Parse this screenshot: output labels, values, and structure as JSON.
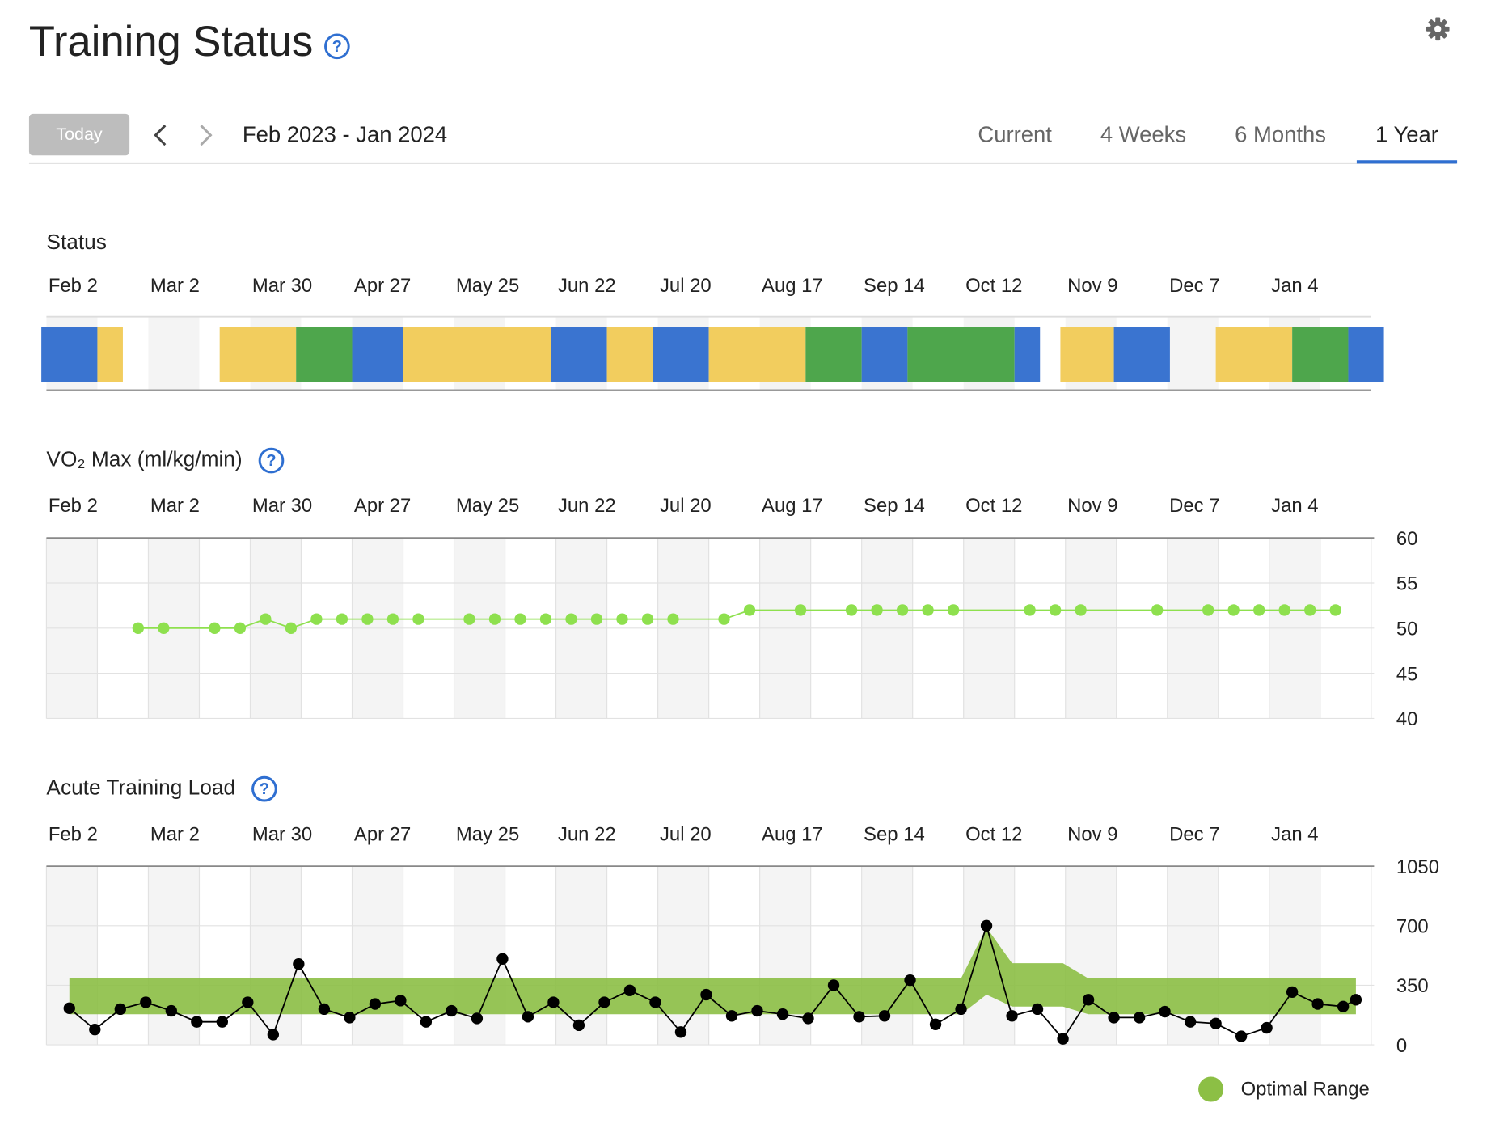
{
  "header": {
    "title": "Training Status",
    "help_icon": "?",
    "today": "Today",
    "range": "Feb 2023 - Jan 2024",
    "tabs": [
      {
        "label": "Current"
      },
      {
        "label": "4 Weeks"
      },
      {
        "label": "6 Months"
      },
      {
        "label": "1 Year",
        "active": true
      }
    ]
  },
  "chart_data": [
    {
      "type": "timeline",
      "title": "Status",
      "xlim": [
        0,
        52
      ],
      "xticks": [
        {
          "value": 0,
          "label": "Feb 2"
        },
        {
          "value": 4,
          "label": "Mar 2"
        },
        {
          "value": 8,
          "label": "Mar 30"
        },
        {
          "value": 12,
          "label": "Apr 27"
        },
        {
          "value": 16,
          "label": "May 25"
        },
        {
          "value": 20,
          "label": "Jun 22"
        },
        {
          "value": 24,
          "label": "Jul 20"
        },
        {
          "value": 28,
          "label": "Aug 17"
        },
        {
          "value": 32,
          "label": "Sep 14"
        },
        {
          "value": 36,
          "label": "Oct 12"
        },
        {
          "value": 40,
          "label": "Nov 9"
        },
        {
          "value": 44,
          "label": "Dec 7"
        },
        {
          "value": 48,
          "label": "Jan 4"
        }
      ],
      "segments": [
        {
          "start": -0.2,
          "end": 2.0,
          "color": "#3a74d0"
        },
        {
          "start": 2.0,
          "end": 3.0,
          "color": "#f2cd5e"
        },
        {
          "start": 6.8,
          "end": 9.8,
          "color": "#f2cd5e"
        },
        {
          "start": 9.8,
          "end": 12.0,
          "color": "#4ea64c"
        },
        {
          "start": 12.0,
          "end": 14.0,
          "color": "#3a74d0"
        },
        {
          "start": 14.0,
          "end": 19.8,
          "color": "#f2cd5e"
        },
        {
          "start": 19.8,
          "end": 22.0,
          "color": "#3a74d0"
        },
        {
          "start": 22.0,
          "end": 23.8,
          "color": "#f2cd5e"
        },
        {
          "start": 23.8,
          "end": 26.0,
          "color": "#3a74d0"
        },
        {
          "start": 26.0,
          "end": 29.8,
          "color": "#f2cd5e"
        },
        {
          "start": 29.8,
          "end": 32.0,
          "color": "#4ea64c"
        },
        {
          "start": 32.0,
          "end": 33.8,
          "color": "#3a74d0"
        },
        {
          "start": 33.8,
          "end": 38.0,
          "color": "#4ea64c"
        },
        {
          "start": 38.0,
          "end": 39.0,
          "color": "#3a74d0"
        },
        {
          "start": 39.8,
          "end": 41.9,
          "color": "#f2cd5e"
        },
        {
          "start": 41.9,
          "end": 44.1,
          "color": "#3a74d0"
        },
        {
          "start": 45.9,
          "end": 48.9,
          "color": "#f2cd5e"
        },
        {
          "start": 48.9,
          "end": 51.1,
          "color": "#4ea64c"
        },
        {
          "start": 51.1,
          "end": 52.5,
          "color": "#3a74d0"
        }
      ]
    },
    {
      "type": "line",
      "title": "VO₂ Max (ml/kg/min)",
      "xlim": [
        0,
        52
      ],
      "xticks": [
        {
          "value": 0,
          "label": "Feb 2"
        },
        {
          "value": 4,
          "label": "Mar 2"
        },
        {
          "value": 8,
          "label": "Mar 30"
        },
        {
          "value": 12,
          "label": "Apr 27"
        },
        {
          "value": 16,
          "label": "May 25"
        },
        {
          "value": 20,
          "label": "Jun 22"
        },
        {
          "value": 24,
          "label": "Jul 20"
        },
        {
          "value": 28,
          "label": "Aug 17"
        },
        {
          "value": 32,
          "label": "Sep 14"
        },
        {
          "value": 36,
          "label": "Oct 12"
        },
        {
          "value": 40,
          "label": "Nov 9"
        },
        {
          "value": 44,
          "label": "Dec 7"
        },
        {
          "value": 48,
          "label": "Jan 4"
        }
      ],
      "ylim": [
        40,
        60
      ],
      "yticks": [
        40,
        45,
        50,
        55,
        60
      ],
      "grid": true,
      "series": [
        {
          "color": "#8ee04e",
          "x": [
            3.6,
            4.6,
            6.6,
            7.6,
            8.6,
            9.6,
            10.6,
            11.6,
            12.6,
            13.6,
            14.6,
            16.6,
            17.6,
            18.6,
            19.6,
            20.6,
            21.6,
            22.6,
            23.6,
            24.6,
            26.6,
            27.6,
            29.6,
            31.6,
            32.6,
            33.6,
            34.6,
            35.6,
            38.6,
            39.6,
            40.6,
            43.6,
            45.6,
            46.6,
            47.6,
            48.6,
            49.6,
            50.6
          ],
          "values": [
            50,
            50,
            50,
            50,
            51,
            50,
            51,
            51,
            51,
            51,
            51,
            51,
            51,
            51,
            51,
            51,
            51,
            51,
            51,
            51,
            51,
            52,
            52,
            52,
            52,
            52,
            52,
            52,
            52,
            52,
            52,
            52,
            52,
            52,
            52,
            52,
            52,
            52
          ]
        }
      ]
    },
    {
      "type": "line",
      "title": "Acute Training Load",
      "xlim": [
        0,
        52
      ],
      "xticks": [
        {
          "value": 0,
          "label": "Feb 2"
        },
        {
          "value": 4,
          "label": "Mar 2"
        },
        {
          "value": 8,
          "label": "Mar 30"
        },
        {
          "value": 12,
          "label": "Apr 27"
        },
        {
          "value": 16,
          "label": "May 25"
        },
        {
          "value": 20,
          "label": "Jun 22"
        },
        {
          "value": 24,
          "label": "Jul 20"
        },
        {
          "value": 28,
          "label": "Aug 17"
        },
        {
          "value": 32,
          "label": "Sep 14"
        },
        {
          "value": 36,
          "label": "Oct 12"
        },
        {
          "value": 40,
          "label": "Nov 9"
        },
        {
          "value": 44,
          "label": "Dec 7"
        },
        {
          "value": 48,
          "label": "Jan 4"
        }
      ],
      "ylim": [
        0,
        1050
      ],
      "yticks": [
        0,
        350,
        700,
        1050
      ],
      "grid": true,
      "band": {
        "name": "Optimal Range",
        "color": "#8cbf45",
        "x": [
          0.9,
          35.9,
          36.9,
          37.9,
          39.9,
          40.9,
          51.4
        ],
        "low": [
          180,
          180,
          295,
          225,
          225,
          180,
          180
        ],
        "high": [
          390,
          390,
          690,
          480,
          480,
          390,
          390
        ]
      },
      "series": [
        {
          "color": "#000000",
          "x": [
            0.9,
            1.9,
            2.9,
            3.9,
            4.9,
            5.9,
            6.9,
            7.9,
            8.9,
            9.9,
            10.9,
            11.9,
            12.9,
            13.9,
            14.9,
            15.9,
            16.9,
            17.9,
            18.9,
            19.9,
            20.9,
            21.9,
            22.9,
            23.9,
            24.9,
            25.9,
            26.9,
            27.9,
            28.9,
            29.9,
            30.9,
            31.9,
            32.9,
            33.9,
            34.9,
            35.9,
            36.9,
            37.9,
            38.9,
            39.9,
            40.9,
            41.9,
            42.9,
            43.9,
            44.9,
            45.9,
            46.9,
            47.9,
            48.9,
            49.9,
            50.9,
            51.4
          ],
          "values": [
            215,
            90,
            210,
            250,
            200,
            135,
            135,
            250,
            60,
            475,
            210,
            160,
            240,
            260,
            135,
            200,
            155,
            505,
            165,
            250,
            115,
            250,
            320,
            250,
            75,
            295,
            170,
            200,
            180,
            155,
            350,
            165,
            170,
            380,
            120,
            210,
            700,
            170,
            210,
            35,
            265,
            160,
            160,
            195,
            135,
            125,
            50,
            100,
            310,
            240,
            225,
            265
          ]
        }
      ]
    }
  ]
}
